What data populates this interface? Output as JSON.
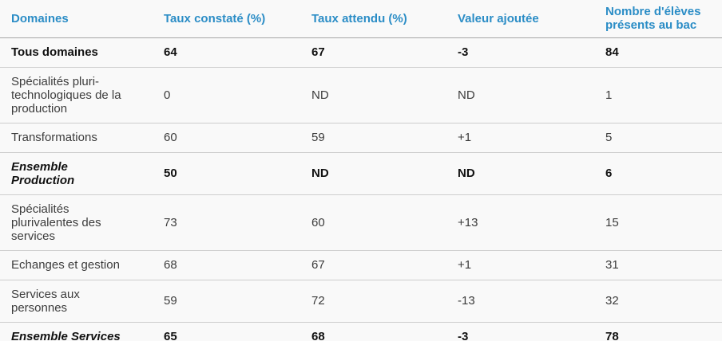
{
  "table": {
    "columns": [
      {
        "label": "Domaines"
      },
      {
        "label": "Taux constaté (%)"
      },
      {
        "label": "Taux attendu (%)"
      },
      {
        "label": "Valeur ajoutée"
      },
      {
        "label": "Nombre d'élèves présents au bac"
      }
    ],
    "rows": [
      {
        "domain": "Tous domaines",
        "taux_constate": "64",
        "taux_attendu": "67",
        "valeur_ajoutee": "-3",
        "nb_eleves_bac": "84",
        "emphasis": "bold"
      },
      {
        "domain": "Spécialités pluri-technologiques de la production",
        "taux_constate": "0",
        "taux_attendu": "ND",
        "valeur_ajoutee": "ND",
        "nb_eleves_bac": "1",
        "emphasis": "none"
      },
      {
        "domain": "Transformations",
        "taux_constate": "60",
        "taux_attendu": "59",
        "valeur_ajoutee": "+1",
        "nb_eleves_bac": "5",
        "emphasis": "none"
      },
      {
        "domain": "Ensemble Production",
        "taux_constate": "50",
        "taux_attendu": "ND",
        "valeur_ajoutee": "ND",
        "nb_eleves_bac": "6",
        "emphasis": "bold-italic-label"
      },
      {
        "domain": "Spécialités plurivalentes des services",
        "taux_constate": "73",
        "taux_attendu": "60",
        "valeur_ajoutee": "+13",
        "nb_eleves_bac": "15",
        "emphasis": "none"
      },
      {
        "domain": "Echanges et gestion",
        "taux_constate": "68",
        "taux_attendu": "67",
        "valeur_ajoutee": "+1",
        "nb_eleves_bac": "31",
        "emphasis": "none"
      },
      {
        "domain": "Services aux personnes",
        "taux_constate": "59",
        "taux_attendu": "72",
        "valeur_ajoutee": "-13",
        "nb_eleves_bac": "32",
        "emphasis": "none"
      },
      {
        "domain": "Ensemble Services",
        "taux_constate": "65",
        "taux_attendu": "68",
        "valeur_ajoutee": "-3",
        "nb_eleves_bac": "78",
        "emphasis": "bold-italic-label"
      }
    ],
    "colors": {
      "header_text": "#2b8dc6",
      "body_text": "#3c3c3c",
      "emphasis_text": "#111111",
      "background": "#f9f9f9",
      "row_divider": "#cdcdcd",
      "header_divider": "#a6a6a6"
    }
  }
}
